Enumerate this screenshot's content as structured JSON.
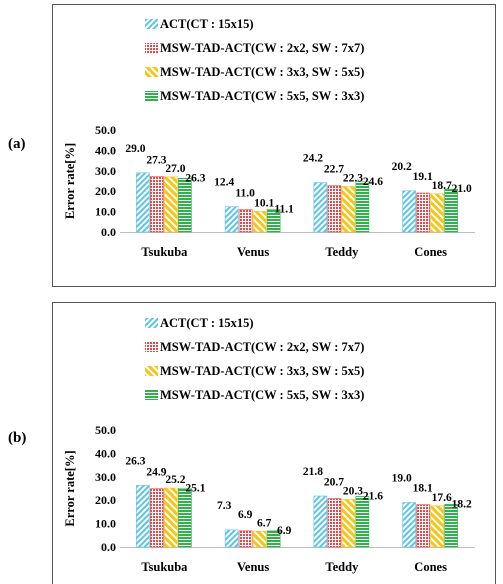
{
  "colors": {
    "s0": "#5bc4e8",
    "s1": "#e8474a",
    "s2": "#f5c518",
    "s3": "#2fb24c",
    "frame": "#555555",
    "axis": "#bfbfbf"
  },
  "panels": [
    {
      "label": "(a)"
    },
    {
      "label": "(b)"
    }
  ],
  "chart_data": [
    {
      "type": "bar",
      "title": "",
      "xlabel": "",
      "ylabel": "Error rate[%]",
      "ylim": [
        0,
        50
      ],
      "yticks": [
        "0.0",
        "10.0",
        "20.0",
        "30.0",
        "40.0",
        "50.0"
      ],
      "categories": [
        "Tsukuba",
        "Venus",
        "Teddy",
        "Cones"
      ],
      "legend_position": "top-left",
      "grid": false,
      "series": [
        {
          "name": "ACT(CT : 15x15)",
          "values": [
            29.0,
            12.4,
            24.2,
            20.2
          ],
          "labels": [
            "29.0",
            "12.4",
            "24.2",
            "20.2"
          ]
        },
        {
          "name": "MSW-TAD-ACT(CW : 2x2, SW : 7x7)",
          "values": [
            27.3,
            11.0,
            22.7,
            19.1
          ],
          "labels": [
            "27.3",
            "11.0",
            "22.7",
            "19.1"
          ]
        },
        {
          "name": "MSW-TAD-ACT(CW : 3x3, SW : 5x5)",
          "values": [
            27.0,
            10.1,
            22.3,
            18.7
          ],
          "labels": [
            "27.0",
            "10.1",
            "22.3",
            "18.7"
          ]
        },
        {
          "name": "MSW-TAD-ACT(CW : 5x5, SW : 3x3)",
          "values": [
            26.3,
            11.1,
            24.6,
            21.0
          ],
          "labels": [
            "26.3",
            "11.1",
            "24.6",
            "21.0"
          ]
        }
      ]
    },
    {
      "type": "bar",
      "title": "",
      "xlabel": "",
      "ylabel": "Error rate[%]",
      "ylim": [
        0,
        50
      ],
      "yticks": [
        "0.0",
        "10.0",
        "20.0",
        "30.0",
        "40.0",
        "50.0"
      ],
      "categories": [
        "Tsukuba",
        "Venus",
        "Teddy",
        "Cones"
      ],
      "legend_position": "top-left",
      "grid": false,
      "series": [
        {
          "name": "ACT(CT : 15x15)",
          "values": [
            26.3,
            7.3,
            21.8,
            19.0
          ],
          "labels": [
            "26.3",
            "7.3",
            "21.8",
            "19.0"
          ]
        },
        {
          "name": "MSW-TAD-ACT(CW : 2x2, SW : 7x7)",
          "values": [
            24.9,
            6.9,
            20.7,
            18.1
          ],
          "labels": [
            "24.9",
            "6.9",
            "20.7",
            "18.1"
          ]
        },
        {
          "name": "MSW-TAD-ACT(CW : 3x3, SW : 5x5)",
          "values": [
            25.2,
            6.7,
            20.3,
            17.6
          ],
          "labels": [
            "25.2",
            "6.7",
            "20.3",
            "17.6"
          ]
        },
        {
          "name": "MSW-TAD-ACT(CW : 5x5, SW : 3x3)",
          "values": [
            25.1,
            6.9,
            21.6,
            18.2
          ],
          "labels": [
            "25.1",
            "6.9",
            "21.6",
            "18.2"
          ]
        }
      ]
    }
  ]
}
